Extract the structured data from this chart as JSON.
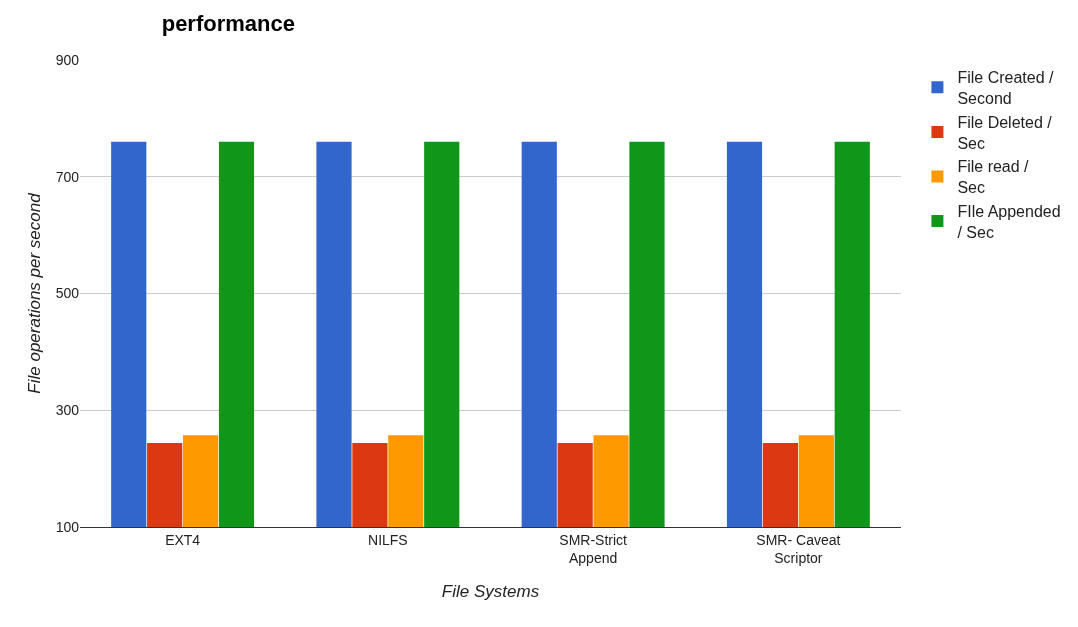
{
  "chart_data": {
    "type": "bar",
    "title": "performance",
    "xlabel": "File Systems",
    "ylabel": "File operations per second",
    "categories": [
      "EXT4",
      "NILFS",
      "SMR-Strict Append",
      "SMR- Caveat Scriptor"
    ],
    "series": [
      {
        "name": "File Created / Second",
        "color": "#3366cc",
        "values": [
          760,
          760,
          760,
          760
        ]
      },
      {
        "name": "File Deleted / Sec",
        "color": "#dc3912",
        "values": [
          244,
          244,
          244,
          244
        ]
      },
      {
        "name": "File read / Sec",
        "color": "#ff9900",
        "values": [
          257,
          257,
          257,
          257
        ]
      },
      {
        "name": "FIle Appended / Sec",
        "color": "#109618",
        "values": [
          760,
          760,
          760,
          760
        ]
      }
    ],
    "ylim": [
      100,
      900
    ],
    "yticks": [
      100,
      300,
      500,
      700,
      900
    ],
    "grid": "y",
    "legend": "right"
  }
}
